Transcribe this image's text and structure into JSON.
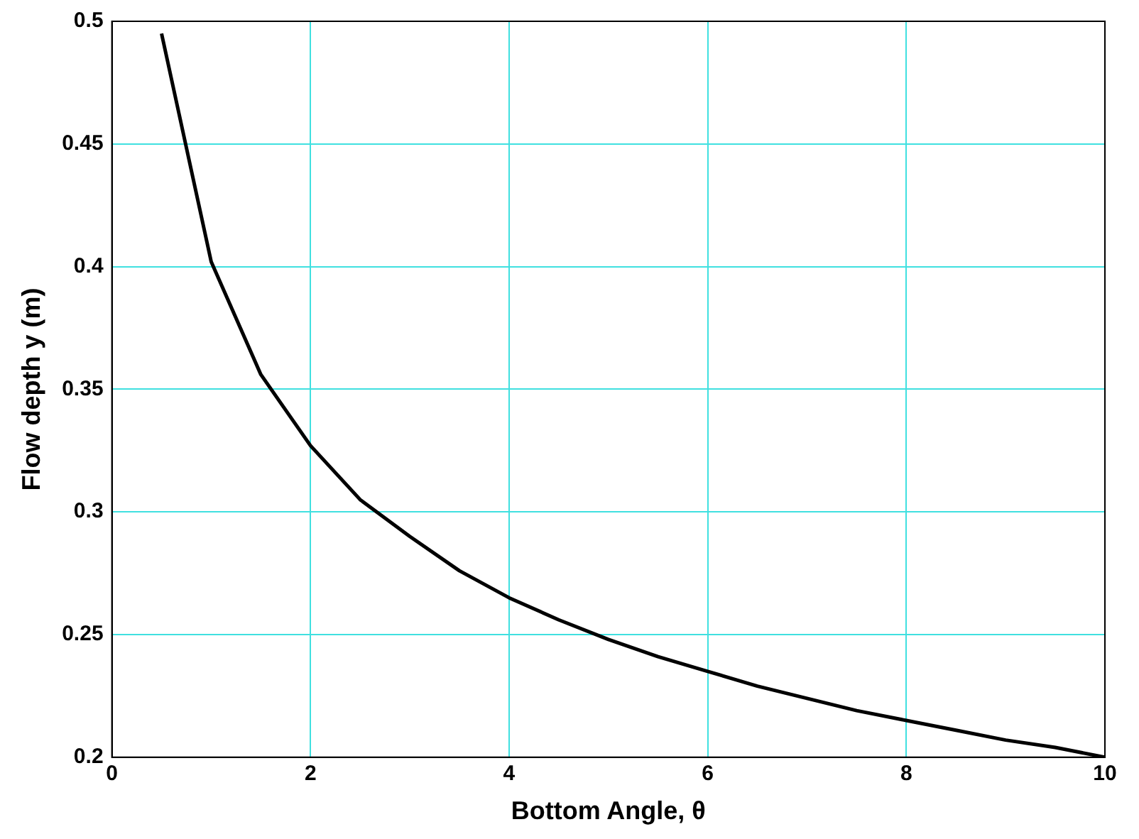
{
  "chart_data": {
    "type": "line",
    "xlabel": "Bottom Angle, θ",
    "ylabel": "Flow depth y (m)",
    "x": [
      0.5,
      1,
      1.5,
      2,
      2.5,
      3,
      3.5,
      4,
      4.5,
      5,
      5.5,
      6,
      6.5,
      7,
      7.5,
      8,
      8.5,
      9,
      9.5,
      10
    ],
    "series": [
      {
        "color": "#000000",
        "values": [
          0.495,
          0.402,
          0.356,
          0.327,
          0.305,
          0.29,
          0.276,
          0.265,
          0.256,
          0.248,
          0.241,
          0.235,
          0.229,
          0.224,
          0.219,
          0.215,
          0.211,
          0.207,
          0.204,
          0.2
        ]
      }
    ],
    "xlim": [
      0,
      10
    ],
    "xticks": [
      0,
      2,
      4,
      6,
      8,
      10
    ],
    "ylim": [
      0.2,
      0.5
    ],
    "yticks": [
      0.2,
      0.25,
      0.3,
      0.35,
      0.4,
      0.45,
      0.5
    ],
    "grid": true,
    "legend": false,
    "marker": "none",
    "line_style": "solid"
  }
}
